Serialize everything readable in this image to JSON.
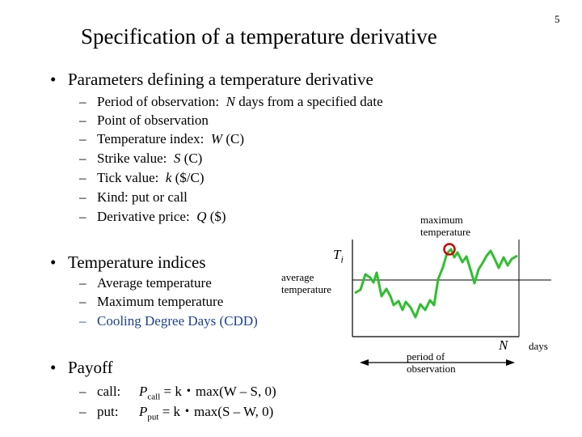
{
  "page_number": "5",
  "title": "Specification of a temperature derivative",
  "params": {
    "heading": "Parameters defining a temperature derivative",
    "items": [
      {
        "label": "Period of observation:",
        "var": "N",
        "rest": "days from a specified date"
      },
      {
        "label": "Point of observation",
        "var": "",
        "rest": ""
      },
      {
        "label": "Temperature index:",
        "var": "W",
        "rest": "(C)"
      },
      {
        "label": "Strike value:",
        "var": "S",
        "rest": "(C)"
      },
      {
        "label": "Tick value:",
        "var": "k",
        "rest": "($/C)"
      },
      {
        "label": "Kind:",
        "var": "",
        "rest": "put or call"
      },
      {
        "label": "Derivative price:",
        "var": "Q",
        "rest": "($)"
      }
    ]
  },
  "indices": {
    "heading": "Temperature indices",
    "items": [
      "Average temperature",
      "Maximum temperature",
      "Cooling Degree Days (CDD)"
    ],
    "highlight_color": "#1f3f8f"
  },
  "payoff": {
    "heading": "Payoff",
    "call": {
      "label": "call:",
      "formula_P": "P",
      "formula_sub": "call",
      "formula_eq": "= k・max(W – S, 0)"
    },
    "put": {
      "label": "put:",
      "formula_P": "P",
      "formula_sub": "put",
      "formula_eq": "= k・max(S – W, 0)"
    }
  },
  "diagram": {
    "ti_label": "T",
    "ti_sub": "i",
    "max_label_1": "maximum",
    "max_label_2": "temperature",
    "avg_label_1": "average",
    "avg_label_2": "temperature",
    "n_label": "N",
    "days_label": "days",
    "period_label_1": "period of",
    "period_label_2": "observation",
    "line_color": "#2fbf2f",
    "marker_color": "#cc0000"
  }
}
